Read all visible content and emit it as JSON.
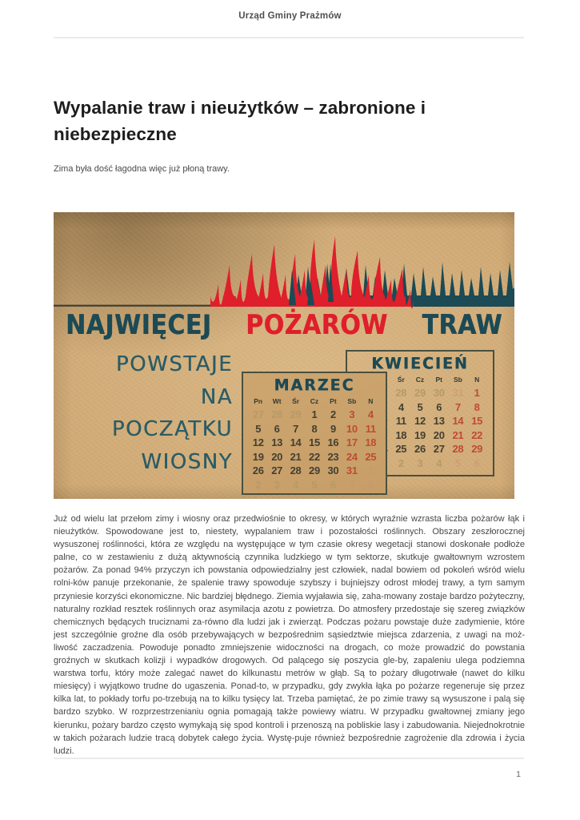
{
  "page": {
    "header_title": "Urząd Gminy Prażmów",
    "page_number": "1"
  },
  "article": {
    "title": "Wypalanie traw i nieużytków – zabronione i niebezpieczne",
    "lead": "Zima była dość łagodna więc już płoną trawy.",
    "body": "Już od wielu lat przełom zimy i wiosny oraz przedwiośnie to okresy, w których wyraźnie wzrasta liczba pożarów łąk i nieużytków. Spowodowane jest to, niestety, wypalaniem traw i pozostałości roślinnych. Obszary zeszłorocznej wysuszonej roślinności, która ze względu na występujące w tym czasie okresy wegetacji stanowi doskonałe podłoże palne, co w zestawieniu z dużą aktywnością czynnika ludzkiego w tym sektorze, skutkuje gwałtownym wzrostem pożarów. Za ponad 94% przyczyn ich powstania odpowiedzialny jest człowiek, nadal bowiem od pokoleń wśród wielu rolni-ków panuje przekonanie, że spalenie trawy spowoduje szybszy i bujniejszy odrost młodej trawy, a tym samym przyniesie korzyści ekonomiczne. Nic bardziej błędnego. Ziemia wyjaławia się, zaha-mowany zostaje bardzo pożyteczny, naturalny rozkład resztek roślinnych oraz asymilacja azotu z powietrza. Do atmosfery przedostaje się szereg związków chemicznych będących truciznami za-równo dla ludzi jak i zwierząt. Podczas pożaru powstaje duże zadymienie, które jest szczególnie groźne dla osób przebywających w bezpośrednim sąsiedztwie miejsca zdarzenia, z uwagi na moż-liwość zaczadzenia. Powoduje ponadto zmniejszenie widoczności na drogach, co może prowadzić do powstania groźnych w skutkach kolizji i wypadków drogowych. Od palącego się poszycia gle-by, zapaleniu ulega podziemna warstwa torfu, który może zalegać nawet do kilkunastu metrów w głąb. Są to pożary długotrwałe (nawet do kilku miesięcy) i wyjątkowo trudne do ugaszenia. Ponad-to, w przypadku, gdy zwykła łąka po pożarze regeneruje się przez kilka lat, to pokłady torfu po-trzebują na to kilku tysięcy lat. Trzeba pamiętać, że po zimie trawy są wysuszone i palą się bardzo szybko. W rozprzestrzenianiu ognia pomagają także powiewy wiatru. W przypadku gwałtownej zmiany jego kierunku, pożary bardzo często wymykają się spod kontroli i przenoszą na pobliskie lasy i zabudowania. Niejednokrotnie w takich pożarach ludzie tracą dobytek całego życia. Wystę-puje również bezpośrednie zagrożenie dla zdrowia i życia ludzi."
  },
  "poster": {
    "headline": [
      {
        "text": "NAJWIĘCEJ",
        "color": "teal"
      },
      {
        "text": "POŻARÓW",
        "color": "red"
      },
      {
        "text": "TRAW",
        "color": "teal"
      }
    ],
    "slogan_lines": [
      "POWSTAJE",
      "NA",
      "POCZĄTKU",
      "WIOSNY"
    ],
    "icons": [
      "flames-icon",
      "grass-icon"
    ],
    "colors": {
      "tan": "#cda56f",
      "flame_red": "#df1f2b",
      "teal": "#1c4a55",
      "slogan": "#2b5c66",
      "calendar_red": "#bf4b34",
      "ink": "#423f33",
      "faded": "#b69a68",
      "faded_red": "#cc9277"
    },
    "calendars": [
      {
        "title": "MARZEC",
        "day_headers": [
          "Pn",
          "Wt",
          "Śr",
          "Cz",
          "Pt",
          "Sb",
          "N"
        ],
        "weeks": [
          [
            {
              "d": "27",
              "t": "f"
            },
            {
              "d": "28",
              "t": "f"
            },
            {
              "d": "29",
              "t": "f"
            },
            {
              "d": "1",
              "t": "w"
            },
            {
              "d": "2",
              "t": "w"
            },
            {
              "d": "3",
              "t": "r"
            },
            {
              "d": "4",
              "t": "r"
            }
          ],
          [
            {
              "d": "5",
              "t": "w"
            },
            {
              "d": "6",
              "t": "w"
            },
            {
              "d": "7",
              "t": "w"
            },
            {
              "d": "8",
              "t": "w"
            },
            {
              "d": "9",
              "t": "w"
            },
            {
              "d": "10",
              "t": "r"
            },
            {
              "d": "11",
              "t": "r"
            }
          ],
          [
            {
              "d": "12",
              "t": "w"
            },
            {
              "d": "13",
              "t": "w"
            },
            {
              "d": "14",
              "t": "w"
            },
            {
              "d": "15",
              "t": "w"
            },
            {
              "d": "16",
              "t": "w"
            },
            {
              "d": "17",
              "t": "r"
            },
            {
              "d": "18",
              "t": "r"
            }
          ],
          [
            {
              "d": "19",
              "t": "w"
            },
            {
              "d": "20",
              "t": "w"
            },
            {
              "d": "21",
              "t": "w"
            },
            {
              "d": "22",
              "t": "w"
            },
            {
              "d": "23",
              "t": "w"
            },
            {
              "d": "24",
              "t": "r"
            },
            {
              "d": "25",
              "t": "r"
            }
          ],
          [
            {
              "d": "26",
              "t": "w"
            },
            {
              "d": "27",
              "t": "w"
            },
            {
              "d": "28",
              "t": "w"
            },
            {
              "d": "29",
              "t": "w"
            },
            {
              "d": "30",
              "t": "w"
            },
            {
              "d": "31",
              "t": "r"
            },
            {
              "d": "1",
              "t": "fr"
            }
          ],
          [
            {
              "d": "2",
              "t": "f"
            },
            {
              "d": "3",
              "t": "f"
            },
            {
              "d": "4",
              "t": "f"
            },
            {
              "d": "5",
              "t": "f"
            },
            {
              "d": "6",
              "t": "f"
            },
            {
              "d": "7",
              "t": "fr"
            },
            {
              "d": "8",
              "t": "fr"
            }
          ]
        ]
      },
      {
        "title": "KWIECIEŃ",
        "day_headers": [
          "Pn",
          "Wt",
          "Śr",
          "Cz",
          "Pt",
          "Sb",
          "N"
        ],
        "weeks": [
          [
            {
              "d": "26",
              "t": "f"
            },
            {
              "d": "27",
              "t": "f"
            },
            {
              "d": "28",
              "t": "f"
            },
            {
              "d": "29",
              "t": "f"
            },
            {
              "d": "30",
              "t": "f"
            },
            {
              "d": "31",
              "t": "fr"
            },
            {
              "d": "1",
              "t": "r"
            }
          ],
          [
            {
              "d": "2",
              "t": "w"
            },
            {
              "d": "3",
              "t": "w"
            },
            {
              "d": "4",
              "t": "w"
            },
            {
              "d": "5",
              "t": "w"
            },
            {
              "d": "6",
              "t": "w"
            },
            {
              "d": "7",
              "t": "r"
            },
            {
              "d": "8",
              "t": "r"
            }
          ],
          [
            {
              "d": "9",
              "t": "w"
            },
            {
              "d": "10",
              "t": "w"
            },
            {
              "d": "11",
              "t": "w"
            },
            {
              "d": "12",
              "t": "w"
            },
            {
              "d": "13",
              "t": "w"
            },
            {
              "d": "14",
              "t": "r"
            },
            {
              "d": "15",
              "t": "r"
            }
          ],
          [
            {
              "d": "16",
              "t": "w"
            },
            {
              "d": "17",
              "t": "w"
            },
            {
              "d": "18",
              "t": "w"
            },
            {
              "d": "19",
              "t": "w"
            },
            {
              "d": "20",
              "t": "w"
            },
            {
              "d": "21",
              "t": "r"
            },
            {
              "d": "22",
              "t": "r"
            }
          ],
          [
            {
              "d": "23",
              "t": "w"
            },
            {
              "d": "24",
              "t": "w"
            },
            {
              "d": "25",
              "t": "w"
            },
            {
              "d": "26",
              "t": "w"
            },
            {
              "d": "27",
              "t": "w"
            },
            {
              "d": "28",
              "t": "r"
            },
            {
              "d": "29",
              "t": "r"
            }
          ],
          [
            {
              "d": "30",
              "t": "w"
            },
            {
              "d": "1",
              "t": "f"
            },
            {
              "d": "2",
              "t": "f"
            },
            {
              "d": "3",
              "t": "f"
            },
            {
              "d": "4",
              "t": "f"
            },
            {
              "d": "5",
              "t": "fr"
            },
            {
              "d": "6",
              "t": "fr"
            }
          ]
        ]
      }
    ]
  }
}
